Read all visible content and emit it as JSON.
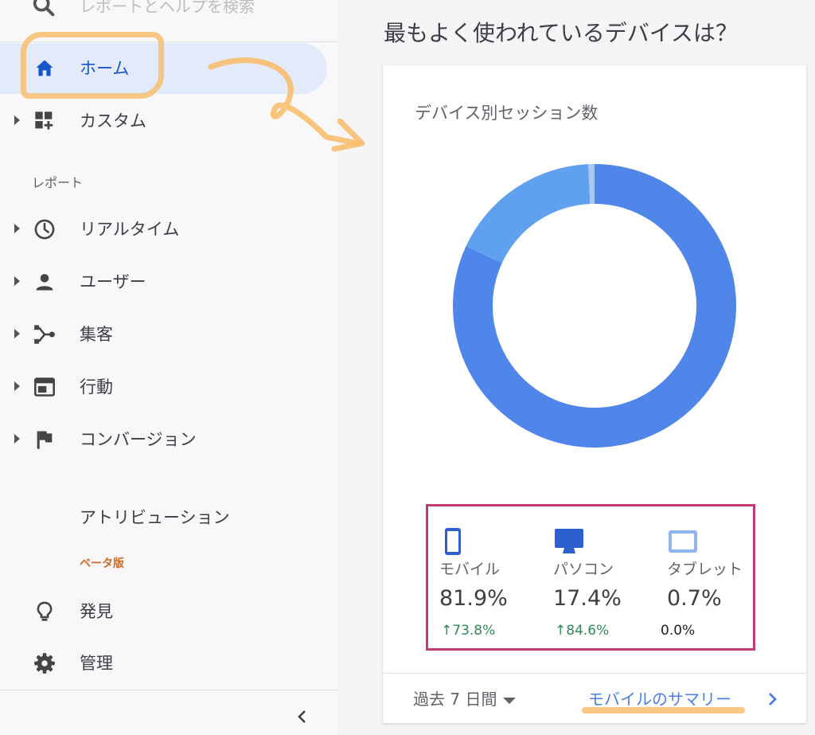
{
  "search": {
    "placeholder": "レポートとヘルプを検索"
  },
  "sidebar": {
    "home": "ホーム",
    "custom": "カスタム",
    "section_label": "レポート",
    "reports": [
      "リアルタイム",
      "ユーザー",
      "集客",
      "行動",
      "コンバージョン"
    ],
    "attribution": "アトリビューション",
    "beta": "ベータ版",
    "discover": "発見",
    "admin": "管理"
  },
  "main": {
    "heading": "最もよく使われているデバイスは？",
    "card_title": "デバイス別セッション数",
    "devices": [
      {
        "name": "モバイル",
        "value": "81.9%",
        "change": "73.8%",
        "trend": "up"
      },
      {
        "name": "パソコン",
        "value": "17.4%",
        "change": "84.6%",
        "trend": "up"
      },
      {
        "name": "タブレット",
        "value": "0.7%",
        "change": "0.0%",
        "trend": "flat"
      }
    ],
    "date_range": "過去 7 日間",
    "summary_link": "モバイルのサマリー"
  },
  "colors": {
    "mobile": "#5085ea",
    "desktop": "#5fa1ef",
    "tablet": "#a9c9f5",
    "accent": "#1a56c8",
    "highlight_box": "#c23a75",
    "scribble": "#f8be6e"
  },
  "chart_data": {
    "type": "pie",
    "categories": [
      "モバイル",
      "パソコン",
      "タブレット"
    ],
    "values": [
      81.9,
      17.4,
      0.7
    ],
    "title": "デバイス別セッション数"
  }
}
